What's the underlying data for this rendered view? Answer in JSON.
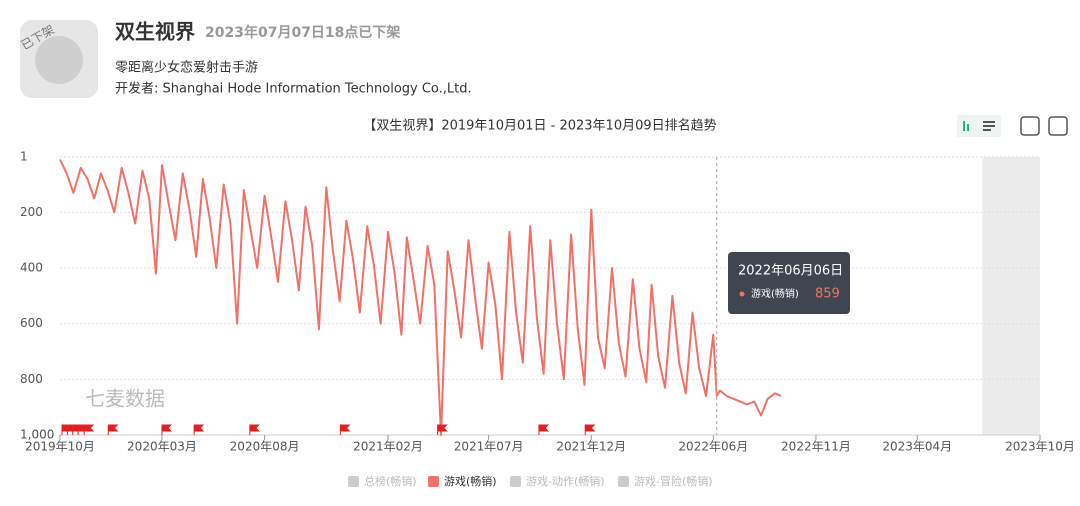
{
  "header": {
    "icon_badge": "已下架",
    "title": "双生视界",
    "status": "2023年07月07日18点已下架",
    "subtitle": "零距离少女恋爱射击手游",
    "developer": "开发者: Shanghai Hode Information Technology Co.,Ltd."
  },
  "chart_data": {
    "type": "line",
    "title": "【双生视界】2019年10月01日 - 2023年10月09日排名趋势",
    "watermark": "七麦数据",
    "x": [
      "2019-10-01",
      "2019-10-11",
      "2019-10-21",
      "2019-11-01",
      "2019-11-11",
      "2019-11-21",
      "2019-12-01",
      "2019-12-11",
      "2019-12-21",
      "2020-01-01",
      "2020-01-11",
      "2020-01-21",
      "2020-02-01",
      "2020-02-11",
      "2020-02-21",
      "2020-03-01",
      "2020-03-11",
      "2020-03-21",
      "2020-04-01",
      "2020-04-11",
      "2020-04-21",
      "2020-05-01",
      "2020-05-11",
      "2020-05-21",
      "2020-06-01",
      "2020-06-11",
      "2020-06-21",
      "2020-07-01",
      "2020-07-11",
      "2020-07-21",
      "2020-08-01",
      "2020-08-11",
      "2020-08-21",
      "2020-09-01",
      "2020-09-11",
      "2020-09-21",
      "2020-10-01",
      "2020-10-11",
      "2020-10-21",
      "2020-11-01",
      "2020-11-11",
      "2020-11-21",
      "2020-12-01",
      "2020-12-11",
      "2020-12-21",
      "2021-01-01",
      "2021-01-11",
      "2021-01-21",
      "2021-02-01",
      "2021-02-11",
      "2021-02-21",
      "2021-03-01",
      "2021-03-11",
      "2021-03-21",
      "2021-04-01",
      "2021-04-11",
      "2021-04-21",
      "2021-05-01",
      "2021-05-11",
      "2021-05-21",
      "2021-06-01",
      "2021-06-11",
      "2021-06-21",
      "2021-07-01",
      "2021-07-11",
      "2021-07-21",
      "2021-08-01",
      "2021-08-11",
      "2021-08-21",
      "2021-09-01",
      "2021-09-11",
      "2021-09-21",
      "2021-10-01",
      "2021-10-11",
      "2021-10-21",
      "2021-11-01",
      "2021-11-11",
      "2021-11-21",
      "2021-12-01",
      "2021-12-11",
      "2021-12-21",
      "2022-01-01",
      "2022-01-11",
      "2022-01-21",
      "2022-02-01",
      "2022-02-11",
      "2022-02-21",
      "2022-03-01",
      "2022-03-11",
      "2022-03-21",
      "2022-04-01",
      "2022-04-11",
      "2022-04-21",
      "2022-05-01",
      "2022-05-11",
      "2022-05-21",
      "2022-06-01",
      "2022-06-06",
      "2022-06-11",
      "2022-06-21",
      "2022-07-01",
      "2022-07-11",
      "2022-07-21",
      "2022-08-01",
      "2022-08-11",
      "2022-08-21",
      "2022-09-01",
      "2022-09-10"
    ],
    "series": [
      {
        "name": "游戏(畅销)",
        "color": "#f07167",
        "values": [
          10,
          60,
          130,
          40,
          80,
          150,
          60,
          120,
          200,
          40,
          130,
          240,
          50,
          150,
          420,
          30,
          170,
          300,
          60,
          190,
          360,
          80,
          220,
          400,
          100,
          240,
          600,
          120,
          260,
          400,
          140,
          290,
          450,
          160,
          300,
          480,
          180,
          320,
          620,
          110,
          340,
          520,
          230,
          370,
          560,
          250,
          390,
          600,
          270,
          420,
          640,
          290,
          440,
          600,
          320,
          460,
          1000,
          340,
          480,
          650,
          300,
          510,
          690,
          380,
          530,
          800,
          270,
          560,
          740,
          250,
          580,
          780,
          300,
          600,
          800,
          280,
          620,
          820,
          190,
          650,
          760,
          400,
          670,
          790,
          440,
          690,
          810,
          460,
          720,
          830,
          500,
          740,
          850,
          560,
          760,
          860,
          640,
          859,
          840,
          860,
          870,
          880,
          890,
          880,
          930,
          870,
          850,
          860
        ]
      }
    ],
    "hidden_series": [
      "总榜(畅销)",
      "游戏-动作(畅销)",
      "游戏-冒险(畅销)"
    ],
    "xlim": [
      "2019-10-01",
      "2023-10-01"
    ],
    "xticks": [
      {
        "value": "2019-10-01",
        "label": "2019年10月"
      },
      {
        "value": "2020-03-01",
        "label": "2020年03月"
      },
      {
        "value": "2020-08-01",
        "label": "2020年08月"
      },
      {
        "value": "2021-02-01",
        "label": "2021年02月"
      },
      {
        "value": "2021-07-01",
        "label": "2021年07月"
      },
      {
        "value": "2021-12-01",
        "label": "2021年12月"
      },
      {
        "value": "2022-06-01",
        "label": "2022年06月"
      },
      {
        "value": "2022-11-01",
        "label": "2022年11月"
      },
      {
        "value": "2023-04-01",
        "label": "2023年04月"
      },
      {
        "value": "2023-10-01",
        "label": "2023年10月"
      }
    ],
    "ylim": [
      1,
      1000
    ],
    "inverted": true,
    "yticks": [
      1,
      200,
      400,
      600,
      800,
      {
        "value": 1000,
        "label": "1,000"
      }
    ],
    "grid": true,
    "shade_start": "2023-07-07",
    "events": [
      "2019-10-04",
      "2019-10-12",
      "2019-10-20",
      "2019-10-28",
      "2019-11-06",
      "2019-12-12",
      "2020-03-01",
      "2020-04-18",
      "2020-07-10",
      "2020-11-22",
      "2021-04-16",
      "2021-09-14",
      "2021-11-22"
    ],
    "tooltip": {
      "x": "2022-06-06",
      "label": "2022年06月06日"
    }
  }
}
